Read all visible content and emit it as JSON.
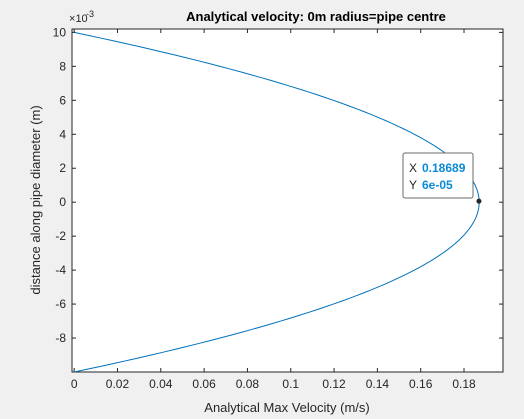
{
  "chart_data": {
    "type": "line",
    "title": "Analytical velocity: 0m radius=pipe centre",
    "xlabel": "Analytical Max Velocity (m/s)",
    "ylabel": "distance along pipe diameter (m)",
    "y_exponent_label": "10",
    "y_exponent_power": "-3",
    "xlim": [
      -0.001,
      0.198
    ],
    "ylim": [
      -0.01,
      0.0102
    ],
    "xticks": [
      0,
      0.02,
      0.04,
      0.06,
      0.08,
      0.1,
      0.12,
      0.14,
      0.16,
      0.18
    ],
    "xtick_labels": [
      "0",
      "0.02",
      "0.04",
      "0.06",
      "0.08",
      "0.1",
      "0.12",
      "0.14",
      "0.16",
      "0.18"
    ],
    "yticks": [
      -0.008,
      -0.006,
      -0.004,
      -0.002,
      0,
      0.002,
      0.004,
      0.006,
      0.008,
      0.01
    ],
    "ytick_labels": [
      "-8",
      "-6",
      "-4",
      "-2",
      "0",
      "2",
      "4",
      "6",
      "8",
      "10"
    ],
    "grid": false,
    "series": [
      {
        "color": "#0072bd",
        "profile": "parabolic",
        "x": [
          0,
          0.036,
          0.068,
          0.097,
          0.122,
          0.143,
          0.16,
          0.173,
          0.182,
          0.187,
          0.18689,
          0.187,
          0.182,
          0.173,
          0.16,
          0.143,
          0.122,
          0.097,
          0.068,
          0.036,
          0
        ],
        "y": [
          0.01,
          0.009,
          0.008,
          0.007,
          0.006,
          0.005,
          0.004,
          0.003,
          0.002,
          0.001,
          6e-05,
          -0.001,
          -0.002,
          -0.003,
          -0.004,
          -0.005,
          -0.006,
          -0.007,
          -0.008,
          -0.009,
          -0.01
        ]
      }
    ],
    "datatip": {
      "x_key": "X",
      "x_value": "0.18689",
      "y_key": "Y",
      "y_value": "6e-05",
      "point_x": 0.18689,
      "point_y": 6e-05
    }
  }
}
